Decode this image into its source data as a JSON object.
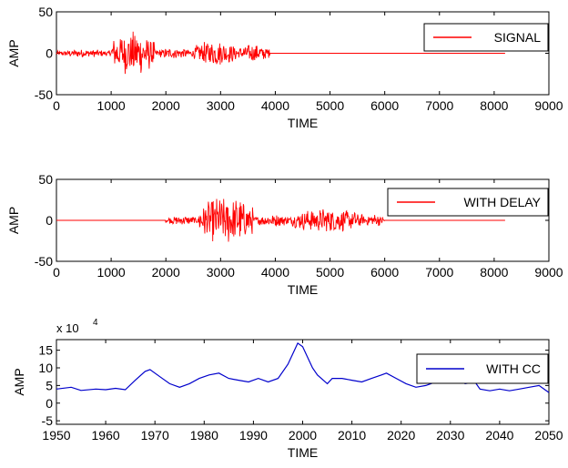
{
  "chart_data": [
    {
      "type": "line",
      "title": "",
      "xlabel": "TIME",
      "ylabel": "AMP",
      "xlim": [
        0,
        9000
      ],
      "ylim": [
        -50,
        50
      ],
      "xticks": [
        0,
        1000,
        2000,
        3000,
        4000,
        5000,
        6000,
        7000,
        8000,
        9000
      ],
      "yticks": [
        -50,
        0,
        50
      ],
      "xtick_labels": [
        "0",
        "1000",
        "2000",
        "3000",
        "4000",
        "5000",
        "6000",
        "7000",
        "8000",
        "9000"
      ],
      "ytick_labels": [
        "-50",
        "0",
        "50"
      ],
      "grid": false,
      "legend": "top-right",
      "series": [
        {
          "name": "SIGNAL",
          "color": "#ff0000",
          "segments": [
            {
              "start": 0,
              "end": 1000,
              "amp": 5
            },
            {
              "start": 1000,
              "end": 1800,
              "amp": 28
            },
            {
              "start": 1800,
              "end": 2500,
              "amp": 7
            },
            {
              "start": 2500,
              "end": 3300,
              "amp": 16
            },
            {
              "start": 3300,
              "end": 3900,
              "amp": 11
            },
            {
              "start": 3900,
              "end": 8200,
              "amp": 0
            }
          ]
        }
      ]
    },
    {
      "type": "line",
      "title": "",
      "xlabel": "TIME",
      "ylabel": "AMP",
      "xlim": [
        0,
        9000
      ],
      "ylim": [
        -50,
        50
      ],
      "xticks": [
        0,
        1000,
        2000,
        3000,
        4000,
        5000,
        6000,
        7000,
        8000,
        9000
      ],
      "yticks": [
        -50,
        0,
        50
      ],
      "xtick_labels": [
        "0",
        "1000",
        "2000",
        "3000",
        "4000",
        "5000",
        "6000",
        "7000",
        "8000",
        "9000"
      ],
      "ytick_labels": [
        "-50",
        "0",
        "50"
      ],
      "grid": false,
      "legend": "top-right",
      "series": [
        {
          "name": "WITH DELAY",
          "color": "#ff0000",
          "segments": [
            {
              "start": 0,
              "end": 2000,
              "amp": 0
            },
            {
              "start": 2000,
              "end": 2600,
              "amp": 6
            },
            {
              "start": 2600,
              "end": 3600,
              "amp": 30
            },
            {
              "start": 3600,
              "end": 4300,
              "amp": 8
            },
            {
              "start": 4300,
              "end": 5600,
              "amp": 15
            },
            {
              "start": 5600,
              "end": 6000,
              "amp": 8
            },
            {
              "start": 6000,
              "end": 8200,
              "amp": 0
            }
          ]
        }
      ]
    },
    {
      "type": "line",
      "title": "",
      "multiplier": "x 10",
      "multiplier_exp": "4",
      "xlabel": "TIME",
      "ylabel": "AMP",
      "xlim": [
        1950,
        2050
      ],
      "ylim": [
        -6,
        18
      ],
      "xticks": [
        1950,
        1960,
        1970,
        1980,
        1990,
        2000,
        2010,
        2020,
        2030,
        2040,
        2050
      ],
      "yticks": [
        -5,
        0,
        5,
        10,
        15
      ],
      "xtick_labels": [
        "1950",
        "1960",
        "1970",
        "1980",
        "1990",
        "2000",
        "2010",
        "2020",
        "2030",
        "2040",
        "2050"
      ],
      "ytick_labels": [
        "-5",
        "0",
        "5",
        "10",
        "15"
      ],
      "grid": false,
      "legend": "top-right",
      "series": [
        {
          "name": "WITH CC",
          "color": "#0000cc",
          "x": [
            1950,
            1953,
            1955,
            1958,
            1960,
            1962,
            1964,
            1966,
            1968,
            1969,
            1971,
            1973,
            1975,
            1977,
            1979,
            1981,
            1983,
            1985,
            1987,
            1989,
            1991,
            1993,
            1995,
            1997,
            1998,
            1999,
            2000,
            2001,
            2002,
            2003,
            2005,
            2006,
            2008,
            2010,
            2012,
            2014,
            2016,
            2017,
            2019,
            2021,
            2023,
            2025,
            2027,
            2029,
            2031,
            2033,
            2035,
            2036,
            2038,
            2040,
            2042,
            2044,
            2046,
            2048,
            2050
          ],
          "y": [
            4,
            4.5,
            3.6,
            4,
            3.8,
            4.2,
            3.8,
            6.5,
            9,
            9.5,
            7.5,
            5.5,
            4.5,
            5.5,
            7,
            8,
            8.5,
            7,
            6.5,
            6,
            7,
            6,
            7,
            11,
            14,
            17,
            16,
            13,
            10,
            8,
            5.5,
            7,
            7,
            6.5,
            6,
            7,
            8,
            8.5,
            7,
            5.5,
            4.5,
            5,
            6,
            7,
            7,
            5.5,
            6,
            4,
            3.5,
            4,
            3.5,
            4,
            4.5,
            5,
            3
          ]
        }
      ]
    }
  ]
}
